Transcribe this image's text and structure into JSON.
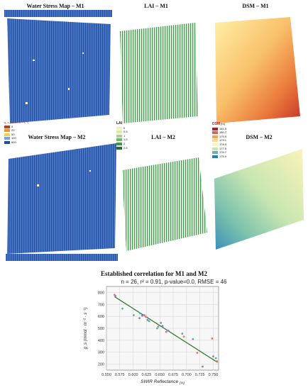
{
  "panels": {
    "ws_m1": "Water Stress Map – M1",
    "lai_m1": "LAI – M1",
    "dsm_m1": "DSM – M1",
    "ws_m2": "Water Stress Map – M2",
    "lai_m2": "LAI – M2",
    "dsm_m2": "DSM – M2"
  },
  "legends": {
    "ws_top": "g_s (mmol m⁻² s⁻¹)",
    "ws_items": [
      "0",
      "20",
      "50",
      "100",
      "800"
    ],
    "ws_colors": [
      "#c0392b",
      "#e69a2e",
      "#f2d24a",
      "#6fa8dc",
      "#1f4fa0"
    ],
    "lai_title": "LAI",
    "lai_items": [
      "0",
      "0.5",
      "1",
      "1.5",
      "2",
      "2.5"
    ],
    "lai_colors": [
      "#f4f1c9",
      "#d8e9a8",
      "#a9d38a",
      "#6fb86a",
      "#3b9a4a",
      "#1c6e33"
    ],
    "dsm_title": "DSM",
    "dsm_unit": "[m]",
    "dsm_items": [
      "181.5",
      "180.7",
      "179.9",
      "179.1",
      "178.3",
      "177.5",
      "176.7",
      "175.9"
    ],
    "dsm_colors": [
      "#b2182b",
      "#e0633f",
      "#f4a261",
      "#fbd889",
      "#fff3b0",
      "#c7e6b4",
      "#5fb3b0",
      "#2c7bb6"
    ]
  },
  "figure_title": "Established correlation for M1 and M2",
  "chart_subtitle": "n = 26, r² = 0.91, p-value=0.0, RMSE = 46",
  "chart_data": {
    "type": "scatter",
    "title": "Established correlation for M1 and M2",
    "subtitle": "n = 26, r² = 0.91, p-value=0.0, RMSE = 46",
    "xlabel": "SWIR Reflectance",
    "xlabel_unit": "(%)",
    "ylabel": "g_s (mmol · m⁻² · s⁻¹)",
    "xlim": [
      0.55,
      0.76
    ],
    "ylim": [
      150,
      850
    ],
    "xticks": [
      "0.550",
      "0.575",
      "0.600",
      "0.625",
      "0.650",
      "0.675",
      "0.700",
      "0.725",
      "0.750"
    ],
    "yticks": [
      "200",
      "300",
      "400",
      "500",
      "600",
      "700",
      "800"
    ],
    "grid": true,
    "trendline": {
      "x": [
        0.565,
        0.758
      ],
      "y": [
        765,
        215
      ],
      "color": "#2e7d32"
    },
    "series": [
      {
        "color": "#e57373",
        "points": [
          [
            0.565,
            780
          ],
          [
            0.621,
            610
          ],
          [
            0.624,
            595
          ],
          [
            0.647,
            515
          ],
          [
            0.662,
            470
          ],
          [
            0.695,
            430
          ],
          [
            0.72,
            295
          ],
          [
            0.748,
            415
          ],
          [
            0.757,
            225
          ]
        ]
      },
      {
        "color": "#7986cb",
        "points": [
          [
            0.567,
            770
          ],
          [
            0.612,
            585
          ],
          [
            0.617,
            605
          ],
          [
            0.627,
            570
          ],
          [
            0.652,
            545
          ],
          [
            0.655,
            520
          ],
          [
            0.666,
            480
          ],
          [
            0.73,
            180
          ],
          [
            0.75,
            265
          ]
        ]
      },
      {
        "color": "#4db6ac",
        "points": [
          [
            0.58,
            665
          ],
          [
            0.601,
            610
          ],
          [
            0.613,
            625
          ],
          [
            0.63,
            560
          ],
          [
            0.645,
            500
          ],
          [
            0.692,
            455
          ],
          [
            0.712,
            410
          ],
          [
            0.755,
            250
          ]
        ]
      }
    ]
  }
}
